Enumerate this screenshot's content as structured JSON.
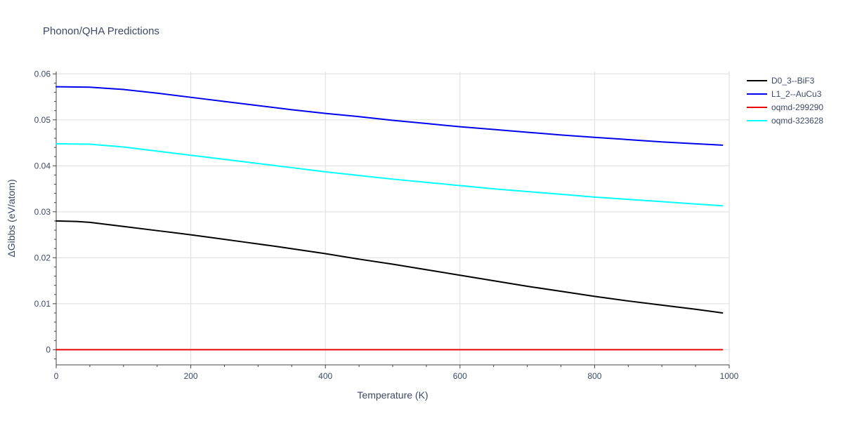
{
  "chart_data": {
    "type": "line",
    "title": "Phonon/QHA Predictions",
    "xlabel": "Temperature (K)",
    "ylabel": "ΔGibbs (eV/atom)",
    "xlim": [
      0,
      1000
    ],
    "ylim": [
      -0.0033,
      0.0605
    ],
    "xticks": [
      0,
      200,
      400,
      600,
      800,
      1000
    ],
    "xtick_labels": [
      "0",
      "200",
      "400",
      "600",
      "800",
      "1000"
    ],
    "yticks": [
      0,
      0.01,
      0.02,
      0.03,
      0.04,
      0.05,
      0.06
    ],
    "ytick_labels": [
      "0",
      "0.01",
      "0.02",
      "0.03",
      "0.04",
      "0.05",
      "0.06"
    ],
    "grid": true,
    "legend_position": "top-right",
    "series": [
      {
        "name": "D0_3--BiF3",
        "color": "#000000",
        "x": [
          0,
          30,
          50,
          100,
          150,
          200,
          230,
          280,
          330,
          400,
          450,
          500,
          550,
          600,
          650,
          700,
          750,
          800,
          850,
          900,
          950,
          990
        ],
        "y": [
          0.028,
          0.0279,
          0.0277,
          0.0268,
          0.0259,
          0.025,
          0.0244,
          0.0234,
          0.0224,
          0.0209,
          0.0197,
          0.0186,
          0.0174,
          0.0162,
          0.015,
          0.0138,
          0.0127,
          0.0116,
          0.0106,
          0.0097,
          0.0088,
          0.008
        ]
      },
      {
        "name": "L1_2--AuCu3",
        "color": "#0000ee",
        "x": [
          0,
          50,
          100,
          150,
          200,
          250,
          300,
          350,
          400,
          450,
          500,
          550,
          600,
          650,
          700,
          750,
          800,
          850,
          900,
          950,
          990
        ],
        "y": [
          0.0572,
          0.0571,
          0.0566,
          0.0558,
          0.0549,
          0.054,
          0.0531,
          0.0522,
          0.0514,
          0.0507,
          0.0499,
          0.0492,
          0.0485,
          0.0479,
          0.0473,
          0.0467,
          0.0462,
          0.0457,
          0.0452,
          0.0448,
          0.0445
        ]
      },
      {
        "name": "oqmd-299290",
        "color": "#ee0000",
        "x": [
          0,
          990
        ],
        "y": [
          0,
          0
        ]
      },
      {
        "name": "oqmd-323628",
        "color": "#00ffff",
        "x": [
          0,
          50,
          100,
          150,
          200,
          250,
          300,
          350,
          400,
          450,
          500,
          550,
          600,
          650,
          700,
          750,
          800,
          850,
          900,
          950,
          990
        ],
        "y": [
          0.0448,
          0.0447,
          0.0441,
          0.0432,
          0.0423,
          0.0414,
          0.0405,
          0.0396,
          0.0387,
          0.0379,
          0.0371,
          0.0364,
          0.0357,
          0.035,
          0.0344,
          0.0338,
          0.0332,
          0.0327,
          0.0322,
          0.0317,
          0.0313
        ]
      }
    ]
  }
}
